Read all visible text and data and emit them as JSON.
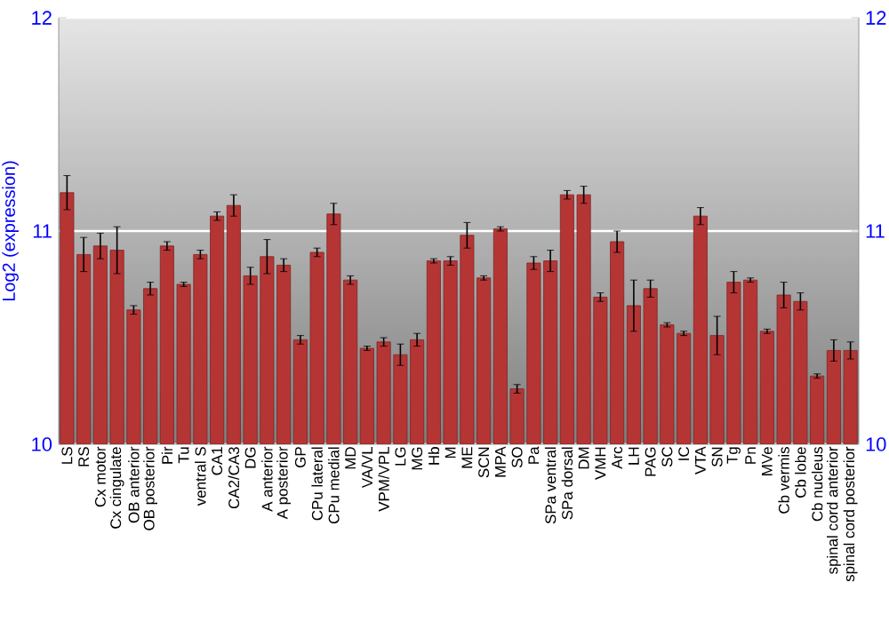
{
  "chart_data": {
    "type": "bar",
    "ylabel": "Log2 (expression)",
    "categories": [
      "LS",
      "RS",
      "Cx motor",
      "Cx cingulate",
      "OB anterior",
      "OB posterior",
      "Pir",
      "Tu",
      "ventral S",
      "CA1",
      "CA2/CA3",
      "DG",
      "A anterior",
      "A posterior",
      "GP",
      "CPu lateral",
      "CPu medial",
      "MD",
      "VA/VL",
      "VPM/VPL",
      "LG",
      "MG",
      "Hb",
      "M",
      "ME",
      "SCN",
      "MPA",
      "SO",
      "Pa",
      "SPa ventral",
      "SPa dorsal",
      "DM",
      "VMH",
      "Arc",
      "LH",
      "PAG",
      "SC",
      "IC",
      "VTA",
      "SN",
      "Tg",
      "Pn",
      "MVe",
      "Cb vermis",
      "Cb lobe",
      "Cb nucleus",
      "spinal cord anterior",
      "spinal cord posterior"
    ],
    "values": [
      11.18,
      10.89,
      10.93,
      10.91,
      10.63,
      10.73,
      10.93,
      10.75,
      10.89,
      11.07,
      11.12,
      10.79,
      10.88,
      10.84,
      10.49,
      10.9,
      11.08,
      10.77,
      10.45,
      10.48,
      10.42,
      10.49,
      10.86,
      10.86,
      10.98,
      10.78,
      11.01,
      10.26,
      10.85,
      10.86,
      11.17,
      11.17,
      10.69,
      10.95,
      10.65,
      10.73,
      10.56,
      10.52,
      11.07,
      10.51,
      10.76,
      10.77,
      10.53,
      10.7,
      10.67,
      10.32,
      10.44,
      10.44
    ],
    "errors": [
      0.08,
      0.08,
      0.06,
      0.11,
      0.02,
      0.03,
      0.02,
      0.01,
      0.02,
      0.02,
      0.05,
      0.04,
      0.08,
      0.03,
      0.02,
      0.02,
      0.05,
      0.02,
      0.01,
      0.02,
      0.05,
      0.03,
      0.01,
      0.02,
      0.06,
      0.01,
      0.01,
      0.02,
      0.03,
      0.05,
      0.02,
      0.04,
      0.02,
      0.05,
      0.12,
      0.04,
      0.01,
      0.01,
      0.04,
      0.09,
      0.05,
      0.01,
      0.01,
      0.06,
      0.04,
      0.01,
      0.05,
      0.04
    ],
    "color": "#b53535",
    "ylim": [
      10,
      12
    ],
    "yticks": [
      10,
      11,
      12
    ],
    "y2lim": [
      10,
      12
    ],
    "y2ticks": [
      10,
      11,
      12
    ],
    "grid": "y"
  }
}
